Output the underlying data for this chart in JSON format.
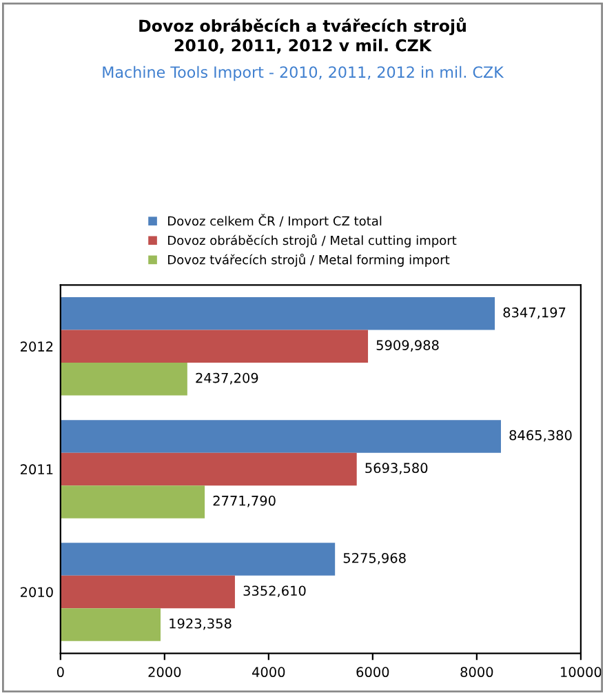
{
  "chart_data": {
    "type": "bar",
    "orientation": "horizontal",
    "title": "Dovoz obráběcích a tvářecích strojů\n2010, 2011, 2012 v mil. CZK",
    "subtitle": "Machine Tools Import - 2010, 2011, 2012 in mil. CZK",
    "categories": [
      "2012",
      "2011",
      "2010"
    ],
    "series": [
      {
        "name": "Dovoz celkem ČR / Import CZ total",
        "color": "#4f81bd",
        "values": [
          8347.197,
          8465.38,
          5275.968
        ],
        "value_labels": [
          "8347,197",
          "8465,380",
          "5275,968"
        ]
      },
      {
        "name": "Dovoz obráběcích strojů / Metal cutting import",
        "color": "#c0504d",
        "values": [
          5909.988,
          5693.58,
          3352.61
        ],
        "value_labels": [
          "5909,988",
          "5693,580",
          "3352,610"
        ]
      },
      {
        "name": "Dovoz tvářecích strojů / Metal forming import",
        "color": "#9bbb59",
        "values": [
          2437.209,
          2771.79,
          1923.358
        ],
        "value_labels": [
          "2437,209",
          "2771,790",
          "1923,358"
        ]
      }
    ],
    "xlim": [
      0,
      10000
    ],
    "xticks": [
      0,
      2000,
      4000,
      6000,
      8000,
      10000
    ],
    "legend": "top",
    "grid": false
  }
}
